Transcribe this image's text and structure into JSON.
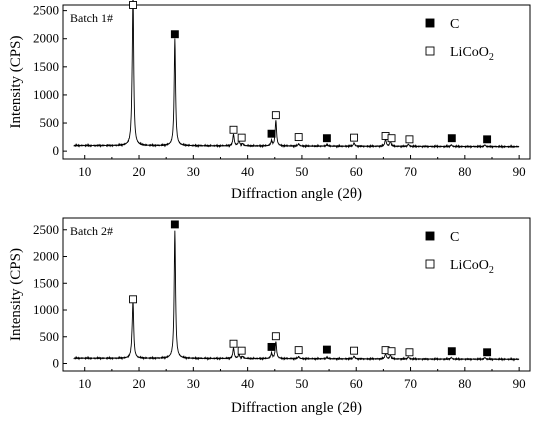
{
  "chart_data": [
    {
      "type": "line",
      "panel_label": "Batch 1#",
      "xlabel": "Diffraction angle (2θ)",
      "ylabel": "Intensity (CPS)",
      "xlim": [
        6,
        92
      ],
      "ylim": [
        -140,
        2600
      ],
      "xticks": [
        10,
        20,
        30,
        40,
        50,
        60,
        70,
        80,
        90
      ],
      "yticks": [
        0,
        500,
        1000,
        1500,
        2000,
        2500
      ],
      "baseline": 100,
      "peaks": [
        {
          "x": 18.9,
          "y": 2450,
          "w": 0.14
        },
        {
          "x": 18.75,
          "y": 420,
          "w": 0.18
        },
        {
          "x": 26.6,
          "y": 1900,
          "w": 0.15
        },
        {
          "x": 37.4,
          "y": 210,
          "w": 0.15
        },
        {
          "x": 38.4,
          "y": 110,
          "w": 0.15
        },
        {
          "x": 39.1,
          "y": 40,
          "w": 0.15
        },
        {
          "x": 44.4,
          "y": 90,
          "w": 0.15
        },
        {
          "x": 45.2,
          "y": 460,
          "w": 0.15
        },
        {
          "x": 49.4,
          "y": 40,
          "w": 0.15
        },
        {
          "x": 54.6,
          "y": 30,
          "w": 0.15
        },
        {
          "x": 59.6,
          "y": 60,
          "w": 0.15
        },
        {
          "x": 65.4,
          "y": 130,
          "w": 0.15
        },
        {
          "x": 66.3,
          "y": 90,
          "w": 0.15
        },
        {
          "x": 69.6,
          "y": 40,
          "w": 0.15
        },
        {
          "x": 77.5,
          "y": 30,
          "w": 0.15
        },
        {
          "x": 83.7,
          "y": 30,
          "w": 0.15
        }
      ],
      "markers": [
        {
          "type": "LiCoO2",
          "x": 18.9,
          "y": 2600
        },
        {
          "type": "C",
          "x": 26.6,
          "y": 2080
        },
        {
          "type": "LiCoO2",
          "x": 37.4,
          "y": 380
        },
        {
          "type": "LiCoO2",
          "x": 38.9,
          "y": 240
        },
        {
          "type": "C",
          "x": 44.4,
          "y": 310
        },
        {
          "type": "LiCoO2",
          "x": 45.2,
          "y": 640
        },
        {
          "type": "LiCoO2",
          "x": 49.4,
          "y": 250
        },
        {
          "type": "C",
          "x": 54.6,
          "y": 230
        },
        {
          "type": "LiCoO2",
          "x": 59.6,
          "y": 240
        },
        {
          "type": "LiCoO2",
          "x": 65.4,
          "y": 270
        },
        {
          "type": "LiCoO2",
          "x": 66.5,
          "y": 230
        },
        {
          "type": "LiCoO2",
          "x": 69.8,
          "y": 210
        },
        {
          "type": "C",
          "x": 77.6,
          "y": 230
        },
        {
          "type": "C",
          "x": 84.1,
          "y": 210
        }
      ],
      "legend": [
        {
          "symbol": "filled-square",
          "label": "C"
        },
        {
          "symbol": "open-square",
          "label": "LiCoO2"
        }
      ]
    },
    {
      "type": "line",
      "panel_label": "Batch 2#",
      "xlabel": "Diffraction angle (2θ)",
      "ylabel": "Intensity (CPS)",
      "xlim": [
        6,
        92
      ],
      "ylim": [
        -140,
        2720
      ],
      "xticks": [
        10,
        20,
        30,
        40,
        50,
        60,
        70,
        80,
        90
      ],
      "yticks": [
        0,
        500,
        1000,
        1500,
        2000,
        2500
      ],
      "baseline": 100,
      "peaks": [
        {
          "x": 18.9,
          "y": 950,
          "w": 0.14
        },
        {
          "x": 18.75,
          "y": 220,
          "w": 0.18
        },
        {
          "x": 26.6,
          "y": 2380,
          "w": 0.15
        },
        {
          "x": 37.4,
          "y": 200,
          "w": 0.15
        },
        {
          "x": 38.4,
          "y": 80,
          "w": 0.15
        },
        {
          "x": 39.1,
          "y": 40,
          "w": 0.15
        },
        {
          "x": 44.4,
          "y": 100,
          "w": 0.15
        },
        {
          "x": 45.2,
          "y": 320,
          "w": 0.15
        },
        {
          "x": 49.4,
          "y": 40,
          "w": 0.15
        },
        {
          "x": 54.6,
          "y": 30,
          "w": 0.15
        },
        {
          "x": 59.6,
          "y": 50,
          "w": 0.15
        },
        {
          "x": 65.4,
          "y": 100,
          "w": 0.15
        },
        {
          "x": 66.3,
          "y": 70,
          "w": 0.15
        },
        {
          "x": 69.6,
          "y": 40,
          "w": 0.15
        },
        {
          "x": 77.5,
          "y": 30,
          "w": 0.15
        },
        {
          "x": 83.7,
          "y": 30,
          "w": 0.15
        }
      ],
      "markers": [
        {
          "type": "LiCoO2",
          "x": 18.9,
          "y": 1200
        },
        {
          "type": "C",
          "x": 26.6,
          "y": 2600
        },
        {
          "type": "LiCoO2",
          "x": 37.4,
          "y": 370
        },
        {
          "type": "LiCoO2",
          "x": 38.9,
          "y": 240
        },
        {
          "type": "C",
          "x": 44.4,
          "y": 310
        },
        {
          "type": "LiCoO2",
          "x": 45.2,
          "y": 510
        },
        {
          "type": "LiCoO2",
          "x": 49.4,
          "y": 250
        },
        {
          "type": "C",
          "x": 54.6,
          "y": 260
        },
        {
          "type": "LiCoO2",
          "x": 59.6,
          "y": 240
        },
        {
          "type": "LiCoO2",
          "x": 65.4,
          "y": 250
        },
        {
          "type": "LiCoO2",
          "x": 66.5,
          "y": 230
        },
        {
          "type": "LiCoO2",
          "x": 69.8,
          "y": 210
        },
        {
          "type": "C",
          "x": 77.6,
          "y": 230
        },
        {
          "type": "C",
          "x": 84.1,
          "y": 210
        }
      ],
      "legend": [
        {
          "symbol": "filled-square",
          "label": "C"
        },
        {
          "symbol": "open-square",
          "label": "LiCoO2"
        }
      ]
    }
  ]
}
